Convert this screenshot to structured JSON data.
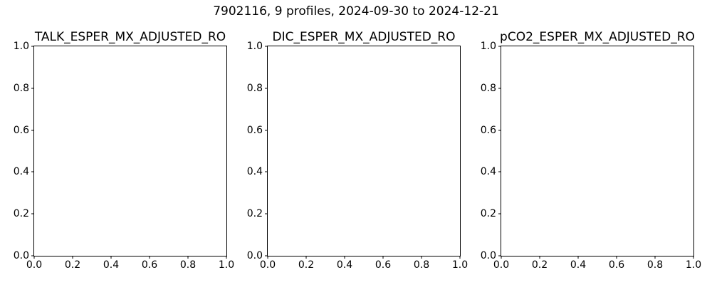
{
  "figure": {
    "suptitle": "7902116, 9 profiles, 2024-09-30 to 2024-12-21",
    "background_color": "#ffffff",
    "axes_edge_color": "#000000",
    "text_color": "#000000"
  },
  "chart_data": [
    {
      "type": "scatter",
      "title": "TALK_ESPER_MX_ADJUSTED_RO",
      "xlabel": "",
      "ylabel": "",
      "xlim": [
        0.0,
        1.0
      ],
      "ylim": [
        0.0,
        1.0
      ],
      "xticks": [
        "0.0",
        "0.2",
        "0.4",
        "0.6",
        "0.8",
        "1.0"
      ],
      "yticks": [
        "0.0",
        "0.2",
        "0.4",
        "0.6",
        "0.8",
        "1.0"
      ],
      "series": [],
      "grid": false,
      "legend": false
    },
    {
      "type": "scatter",
      "title": "DIC_ESPER_MX_ADJUSTED_RO",
      "xlabel": "",
      "ylabel": "",
      "xlim": [
        0.0,
        1.0
      ],
      "ylim": [
        0.0,
        1.0
      ],
      "xticks": [
        "0.0",
        "0.2",
        "0.4",
        "0.6",
        "0.8",
        "1.0"
      ],
      "yticks": [
        "0.0",
        "0.2",
        "0.4",
        "0.6",
        "0.8",
        "1.0"
      ],
      "series": [],
      "grid": false,
      "legend": false
    },
    {
      "type": "scatter",
      "title": "pCO2_ESPER_MX_ADJUSTED_RO",
      "xlabel": "",
      "ylabel": "",
      "xlim": [
        0.0,
        1.0
      ],
      "ylim": [
        0.0,
        1.0
      ],
      "xticks": [
        "0.0",
        "0.2",
        "0.4",
        "0.6",
        "0.8",
        "1.0"
      ],
      "yticks": [
        "0.0",
        "0.2",
        "0.4",
        "0.6",
        "0.8",
        "1.0"
      ],
      "series": [],
      "grid": false,
      "legend": false
    }
  ]
}
